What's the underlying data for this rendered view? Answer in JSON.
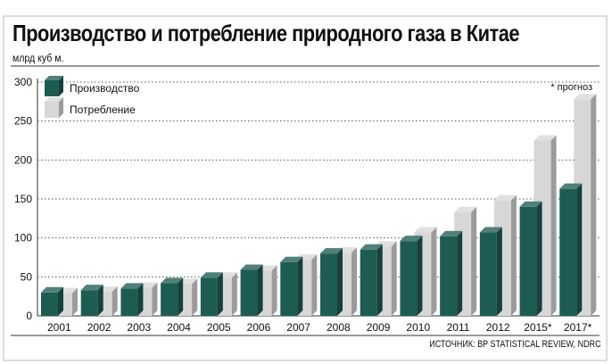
{
  "title": "Производство и потребление природного газа в Китае",
  "unit": "млрд куб м.",
  "note": "* прогноз",
  "source": "ИСТОЧНИК: BP STATISTICAL REVIEW, NDRC",
  "colors": {
    "production": "#1d5c53",
    "consumption": "#d7d7d7",
    "frame": "#333333"
  },
  "chart_data": {
    "type": "bar",
    "categories": [
      "2001",
      "2002",
      "2003",
      "2004",
      "2005",
      "2006",
      "2007",
      "2008",
      "2009",
      "2010",
      "2011",
      "2012",
      "2015*",
      "2017*"
    ],
    "series": [
      {
        "name": "Производство",
        "values": [
          30,
          33,
          35,
          42,
          49,
          59,
          69,
          80,
          85,
          96,
          102,
          107,
          140,
          163
        ]
      },
      {
        "name": "Потребление",
        "values": [
          29,
          31,
          36,
          41,
          49,
          58,
          72,
          81,
          89,
          107,
          133,
          148,
          225,
          278
        ]
      }
    ],
    "yticks": [
      0,
      50,
      100,
      150,
      200,
      250,
      300
    ],
    "ylim": [
      0,
      300
    ],
    "xlabel": "",
    "ylabel": "",
    "legend": "top-left",
    "grid": true
  }
}
